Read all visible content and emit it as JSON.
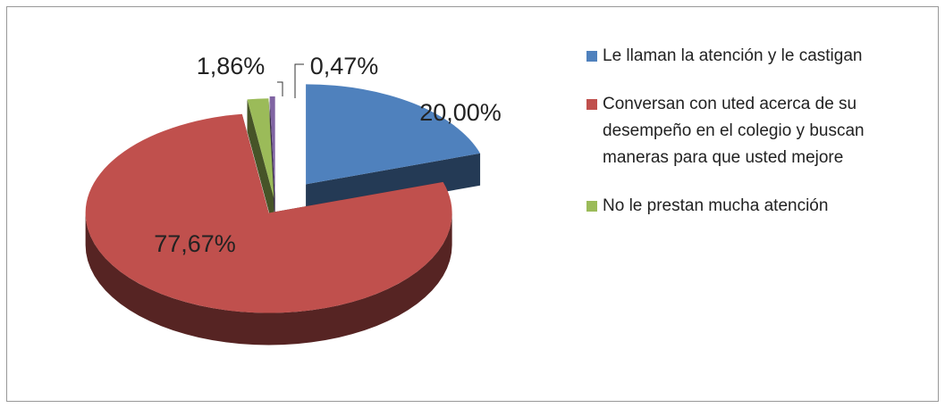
{
  "chart_data": {
    "type": "pie",
    "categories": [
      "Le llaman la atención y le castigan",
      "Conversan con uted acerca de su desempeño en el colegio y buscan maneras para que usted mejore",
      "No le prestan mucha atención",
      null
    ],
    "values": [
      20.0,
      77.67,
      1.86,
      0.47
    ],
    "value_labels": [
      "20,00%",
      "77,67%",
      "1,86%",
      "0,47%"
    ],
    "colors": [
      "#4f81bd",
      "#c0504d",
      "#9bbb59",
      "#8064a2"
    ],
    "legend": "right"
  }
}
